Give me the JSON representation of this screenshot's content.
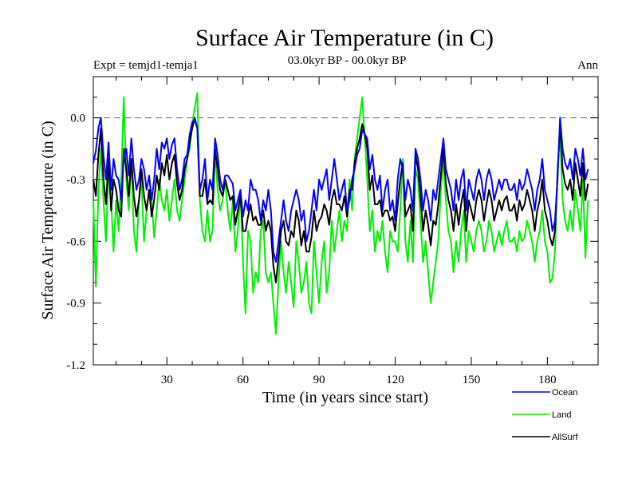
{
  "chart_data": {
    "type": "line",
    "title": "Surface Air Temperature (in C)",
    "subtitle": "03.0kyr BP - 00.0kyr BP",
    "experiment_label": "Expt = temjd1-temja1",
    "season_label": "Ann",
    "xlabel": "Time (in years since start)",
    "ylabel": "Surface Air Temperature (in C)",
    "xlim": [
      1,
      200
    ],
    "ylim": [
      -1.2,
      0.2
    ],
    "xticks": [
      30,
      60,
      90,
      120,
      150,
      180
    ],
    "yticks": [
      0.0,
      -0.3,
      -0.6,
      -0.9,
      -1.2
    ],
    "ytick_labels": [
      "0.0",
      "-0.3",
      "-0.6",
      "-0.9",
      "-1.2"
    ],
    "reference_line": 0.0,
    "legend": [
      "Ocean",
      "Land",
      "AllSurf"
    ],
    "colors": {
      "Ocean": "#0000ff",
      "Land": "#00ee00",
      "AllSurf": "#000000",
      "reference": "#666666"
    },
    "series": [
      {
        "name": "Ocean",
        "color": "#0000ff",
        "values": [
          -0.22,
          -0.16,
          -0.05,
          0.0,
          -0.18,
          -0.3,
          -0.12,
          -0.35,
          -0.2,
          -0.28,
          -0.3,
          -0.4,
          -0.2,
          -0.15,
          -0.28,
          -0.1,
          -0.25,
          -0.35,
          -0.3,
          -0.2,
          -0.25,
          -0.35,
          -0.28,
          -0.4,
          -0.3,
          -0.15,
          -0.25,
          -0.12,
          -0.15,
          -0.1,
          -0.2,
          -0.13,
          -0.1,
          -0.25,
          -0.35,
          -0.3,
          -0.2,
          -0.18,
          -0.08,
          -0.02,
          -0.01,
          -0.05,
          -0.35,
          -0.3,
          -0.2,
          -0.4,
          -0.3,
          -0.35,
          -0.1,
          -0.18,
          -0.3,
          -0.35,
          -0.28,
          -0.28,
          -0.3,
          -0.32,
          -0.45,
          -0.4,
          -0.35,
          -0.48,
          -0.4,
          -0.45,
          -0.3,
          -0.35,
          -0.35,
          -0.4,
          -0.5,
          -0.4,
          -0.45,
          -0.35,
          -0.45,
          -0.65,
          -0.7,
          -0.6,
          -0.5,
          -0.4,
          -0.5,
          -0.55,
          -0.45,
          -0.4,
          -0.35,
          -0.4,
          -0.5,
          -0.45,
          -0.6,
          -0.55,
          -0.45,
          -0.35,
          -0.45,
          -0.3,
          -0.35,
          -0.3,
          -0.25,
          -0.4,
          -0.3,
          -0.2,
          -0.3,
          -0.4,
          -0.35,
          -0.3,
          -0.45,
          -0.4,
          -0.3,
          -0.25,
          -0.18,
          -0.15,
          -0.06,
          -0.08,
          -0.1,
          -0.25,
          -0.18,
          -0.3,
          -0.35,
          -0.28,
          -0.45,
          -0.35,
          -0.3,
          -0.45,
          -0.4,
          -0.5,
          -0.3,
          -0.2,
          -0.25,
          -0.4,
          -0.3,
          -0.35,
          -0.45,
          -0.15,
          -0.2,
          -0.3,
          -0.45,
          -0.35,
          -0.4,
          -0.5,
          -0.35,
          -0.4,
          -0.3,
          -0.2,
          -0.1,
          -0.25,
          -0.3,
          -0.35,
          -0.45,
          -0.3,
          -0.4,
          -0.3,
          -0.25,
          -0.45,
          -0.3,
          -0.35,
          -0.4,
          -0.3,
          -0.25,
          -0.3,
          -0.4,
          -0.3,
          -0.25,
          -0.3,
          -0.4,
          -0.35,
          -0.3,
          -0.35,
          -0.3,
          -0.3,
          -0.35,
          -0.35,
          -0.32,
          -0.4,
          -0.3,
          -0.35,
          -0.32,
          -0.25,
          -0.3,
          -0.35,
          -0.45,
          -0.35,
          -0.3,
          -0.2,
          -0.35,
          -0.4,
          -0.45,
          -0.55,
          -0.5,
          -0.3,
          0.0,
          -0.15,
          -0.22,
          -0.25,
          -0.2,
          -0.3,
          -0.15,
          -0.2,
          -0.28,
          -0.15,
          -0.3,
          -0.25
        ]
      },
      {
        "name": "Land",
        "color": "#00ee00",
        "values": [
          -0.4,
          -0.82,
          -0.35,
          -0.15,
          -0.4,
          -0.6,
          -0.25,
          -0.4,
          -0.65,
          -0.4,
          -0.55,
          -0.3,
          0.1,
          -0.3,
          -0.45,
          -0.2,
          -0.55,
          -0.65,
          -0.4,
          -0.3,
          -0.6,
          -0.45,
          -0.35,
          -0.4,
          -0.58,
          -0.45,
          -0.3,
          -0.4,
          -0.45,
          -0.35,
          -0.5,
          -0.4,
          -0.3,
          -0.45,
          -0.5,
          -0.4,
          -0.3,
          -0.2,
          -0.15,
          -0.03,
          0.05,
          0.12,
          -0.4,
          -0.55,
          -0.6,
          -0.45,
          -0.6,
          -0.55,
          -0.15,
          -0.35,
          -0.45,
          -0.4,
          -0.3,
          -0.45,
          -0.55,
          -0.4,
          -0.65,
          -0.55,
          -0.35,
          -0.7,
          -0.95,
          -0.55,
          -0.6,
          -0.85,
          -0.75,
          -0.8,
          -0.55,
          -0.5,
          -0.75,
          -0.8,
          -0.75,
          -0.9,
          -1.05,
          -0.8,
          -0.6,
          -0.75,
          -0.85,
          -0.7,
          -0.8,
          -0.92,
          -0.6,
          -0.7,
          -0.85,
          -0.8,
          -0.7,
          -0.9,
          -0.95,
          -0.6,
          -0.75,
          -0.9,
          -0.7,
          -0.6,
          -0.85,
          -0.75,
          -0.5,
          -0.65,
          -0.55,
          -0.45,
          -0.6,
          -0.5,
          -0.55,
          -0.3,
          -0.45,
          -0.2,
          -0.1,
          0.0,
          0.1,
          -0.1,
          -0.3,
          -0.55,
          -0.45,
          -0.65,
          -0.55,
          -0.6,
          -0.5,
          -0.65,
          -0.75,
          -0.55,
          -0.6,
          -0.6,
          -0.65,
          -0.45,
          -0.2,
          -0.6,
          -0.7,
          -0.5,
          -0.7,
          -0.25,
          -0.3,
          -0.5,
          -0.7,
          -0.6,
          -0.75,
          -0.9,
          -0.8,
          -0.7,
          -0.6,
          -0.35,
          -0.2,
          -0.4,
          -0.55,
          -0.6,
          -0.75,
          -0.6,
          -0.7,
          -0.55,
          -0.45,
          -0.7,
          -0.55,
          -0.6,
          -0.65,
          -0.55,
          -0.5,
          -0.55,
          -0.65,
          -0.6,
          -0.5,
          -0.55,
          -0.65,
          -0.6,
          -0.55,
          -0.62,
          -0.55,
          -0.5,
          -0.6,
          -0.6,
          -0.58,
          -0.65,
          -0.55,
          -0.6,
          -0.58,
          -0.5,
          -0.55,
          -0.6,
          -0.7,
          -0.6,
          -0.55,
          -0.45,
          -0.6,
          -0.65,
          -0.8,
          -0.78,
          -0.65,
          -0.25,
          -0.08,
          -0.4,
          -0.5,
          -0.55,
          -0.45,
          -0.55,
          -0.35,
          -0.45,
          -0.55,
          -0.3,
          -0.68,
          -0.4
        ]
      },
      {
        "name": "AllSurf",
        "color": "#000000",
        "values": [
          -0.3,
          -0.38,
          -0.18,
          -0.05,
          -0.3,
          -0.42,
          -0.2,
          -0.45,
          -0.3,
          -0.35,
          -0.45,
          -0.48,
          -0.15,
          -0.25,
          -0.38,
          -0.2,
          -0.38,
          -0.48,
          -0.4,
          -0.25,
          -0.38,
          -0.45,
          -0.35,
          -0.48,
          -0.4,
          -0.28,
          -0.35,
          -0.22,
          -0.28,
          -0.18,
          -0.3,
          -0.22,
          -0.18,
          -0.32,
          -0.4,
          -0.35,
          -0.25,
          -0.2,
          -0.12,
          -0.05,
          0.0,
          -0.05,
          -0.38,
          -0.38,
          -0.3,
          -0.42,
          -0.4,
          -0.42,
          -0.15,
          -0.25,
          -0.35,
          -0.38,
          -0.3,
          -0.35,
          -0.4,
          -0.38,
          -0.52,
          -0.45,
          -0.38,
          -0.55,
          -0.55,
          -0.48,
          -0.42,
          -0.5,
          -0.48,
          -0.52,
          -0.52,
          -0.45,
          -0.55,
          -0.5,
          -0.55,
          -0.72,
          -0.8,
          -0.68,
          -0.55,
          -0.5,
          -0.6,
          -0.62,
          -0.55,
          -0.58,
          -0.45,
          -0.5,
          -0.62,
          -0.55,
          -0.65,
          -0.65,
          -0.58,
          -0.45,
          -0.55,
          -0.5,
          -0.48,
          -0.42,
          -0.45,
          -0.52,
          -0.4,
          -0.35,
          -0.42,
          -0.42,
          -0.45,
          -0.38,
          -0.48,
          -0.35,
          -0.35,
          -0.22,
          -0.15,
          -0.1,
          -0.03,
          -0.08,
          -0.15,
          -0.35,
          -0.28,
          -0.42,
          -0.42,
          -0.4,
          -0.48,
          -0.45,
          -0.45,
          -0.5,
          -0.48,
          -0.55,
          -0.42,
          -0.3,
          -0.22,
          -0.48,
          -0.45,
          -0.42,
          -0.55,
          -0.18,
          -0.25,
          -0.38,
          -0.55,
          -0.45,
          -0.52,
          -0.62,
          -0.5,
          -0.52,
          -0.42,
          -0.28,
          -0.15,
          -0.32,
          -0.4,
          -0.45,
          -0.55,
          -0.42,
          -0.52,
          -0.42,
          -0.35,
          -0.55,
          -0.4,
          -0.45,
          -0.5,
          -0.4,
          -0.35,
          -0.4,
          -0.5,
          -0.42,
          -0.35,
          -0.4,
          -0.5,
          -0.45,
          -0.4,
          -0.45,
          -0.4,
          -0.38,
          -0.45,
          -0.45,
          -0.42,
          -0.5,
          -0.4,
          -0.45,
          -0.42,
          -0.35,
          -0.4,
          -0.45,
          -0.55,
          -0.45,
          -0.4,
          -0.3,
          -0.45,
          -0.5,
          -0.58,
          -0.62,
          -0.55,
          -0.28,
          -0.02,
          -0.25,
          -0.32,
          -0.35,
          -0.3,
          -0.4,
          -0.22,
          -0.3,
          -0.38,
          -0.22,
          -0.4,
          -0.32
        ]
      }
    ]
  }
}
